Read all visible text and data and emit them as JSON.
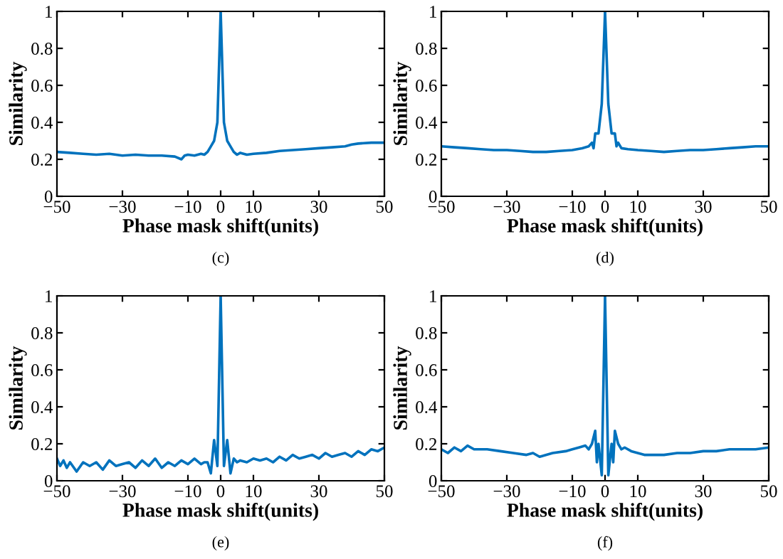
{
  "chart_data": [
    {
      "type": "line",
      "xlabel": "Phase mask shift(units)",
      "ylabel": "Similarity",
      "annotations": [
        "(c)"
      ],
      "xlim": [
        -50,
        50
      ],
      "ylim": [
        0,
        1
      ],
      "xticks": [
        {
          "value": -50,
          "label": "−50"
        },
        {
          "value": -30,
          "label": "−30"
        },
        {
          "value": -10,
          "label": "−10"
        },
        0,
        10,
        30,
        50
      ],
      "yticks": [
        0,
        0.2,
        0.4,
        0.6,
        0.8,
        1
      ],
      "series": [
        {
          "color": "#0072bd",
          "x": [
            -50,
            -46,
            -42,
            -38,
            -34,
            -30,
            -26,
            -22,
            -18,
            -14,
            -12,
            -11,
            -10,
            -8,
            -6,
            -5,
            -4,
            -3,
            -2,
            -1,
            0,
            1,
            2,
            3,
            4,
            5,
            6,
            8,
            10,
            14,
            18,
            22,
            26,
            30,
            34,
            38,
            40,
            42,
            46,
            50
          ],
          "values": [
            0.24,
            0.235,
            0.23,
            0.225,
            0.23,
            0.22,
            0.225,
            0.22,
            0.22,
            0.215,
            0.2,
            0.22,
            0.225,
            0.22,
            0.23,
            0.225,
            0.24,
            0.27,
            0.3,
            0.4,
            1,
            0.4,
            0.3,
            0.27,
            0.24,
            0.225,
            0.235,
            0.225,
            0.23,
            0.235,
            0.245,
            0.25,
            0.255,
            0.26,
            0.265,
            0.27,
            0.28,
            0.285,
            0.29,
            0.29
          ]
        }
      ]
    },
    {
      "type": "line",
      "xlabel": "Phase mask shift(units)",
      "ylabel": "Similarity",
      "annotations": [
        "(d)"
      ],
      "xlim": [
        -50,
        50
      ],
      "ylim": [
        0,
        1
      ],
      "xticks": [
        {
          "value": -50,
          "label": "−50"
        },
        {
          "value": -30,
          "label": "−30"
        },
        {
          "value": -10,
          "label": "−10"
        },
        0,
        10,
        30,
        50
      ],
      "yticks": [
        0,
        0.2,
        0.4,
        0.6,
        0.8,
        1
      ],
      "series": [
        {
          "color": "#0072bd",
          "x": [
            -50,
            -46,
            -42,
            -38,
            -34,
            -30,
            -26,
            -22,
            -18,
            -14,
            -10,
            -7,
            -5,
            -4,
            -3.5,
            -3,
            -2,
            -1,
            0,
            1,
            2,
            3,
            3.5,
            4,
            5,
            7,
            10,
            14,
            18,
            22,
            26,
            30,
            34,
            38,
            42,
            46,
            50
          ],
          "values": [
            0.27,
            0.265,
            0.26,
            0.255,
            0.25,
            0.25,
            0.245,
            0.24,
            0.24,
            0.245,
            0.25,
            0.26,
            0.27,
            0.29,
            0.26,
            0.34,
            0.34,
            0.5,
            1,
            0.5,
            0.34,
            0.34,
            0.27,
            0.29,
            0.26,
            0.255,
            0.25,
            0.245,
            0.24,
            0.245,
            0.25,
            0.25,
            0.255,
            0.26,
            0.265,
            0.27,
            0.27
          ]
        }
      ]
    },
    {
      "type": "line",
      "xlabel": "Phase mask shift(units)",
      "ylabel": "Similarity",
      "annotations": [
        "(e)"
      ],
      "xlim": [
        -50,
        50
      ],
      "ylim": [
        0,
        1
      ],
      "xticks": [
        {
          "value": -50,
          "label": "−50"
        },
        {
          "value": -30,
          "label": "−30"
        },
        {
          "value": -10,
          "label": "−10"
        },
        0,
        10,
        30,
        50
      ],
      "yticks": [
        0,
        0.2,
        0.4,
        0.6,
        0.8,
        1
      ],
      "series": [
        {
          "color": "#0072bd",
          "x": [
            -50,
            -49,
            -48,
            -47,
            -46,
            -44,
            -42,
            -40,
            -38,
            -36,
            -34,
            -32,
            -30,
            -28,
            -26,
            -24,
            -22,
            -20,
            -18,
            -16,
            -14,
            -12,
            -10,
            -8,
            -6,
            -5,
            -4,
            -3,
            -2,
            -1,
            0,
            1,
            2,
            3,
            4,
            5,
            6,
            8,
            10,
            12,
            14,
            16,
            18,
            20,
            22,
            24,
            26,
            28,
            30,
            32,
            34,
            36,
            38,
            40,
            42,
            44,
            46,
            48,
            50
          ],
          "values": [
            0.12,
            0.08,
            0.11,
            0.07,
            0.1,
            0.05,
            0.1,
            0.08,
            0.1,
            0.06,
            0.11,
            0.08,
            0.09,
            0.1,
            0.07,
            0.11,
            0.08,
            0.12,
            0.07,
            0.1,
            0.08,
            0.11,
            0.09,
            0.12,
            0.09,
            0.1,
            0.1,
            0.04,
            0.22,
            0.08,
            1,
            0.08,
            0.22,
            0.04,
            0.12,
            0.1,
            0.11,
            0.1,
            0.12,
            0.11,
            0.12,
            0.1,
            0.13,
            0.11,
            0.14,
            0.12,
            0.13,
            0.14,
            0.12,
            0.15,
            0.13,
            0.14,
            0.15,
            0.13,
            0.16,
            0.14,
            0.17,
            0.16,
            0.18
          ]
        }
      ]
    },
    {
      "type": "line",
      "xlabel": "Phase mask shift(units)",
      "ylabel": "Similarity",
      "annotations": [
        "(f)"
      ],
      "xlim": [
        -50,
        50
      ],
      "ylim": [
        0,
        1
      ],
      "xticks": [
        {
          "value": -50,
          "label": "−50"
        },
        {
          "value": -30,
          "label": "−30"
        },
        {
          "value": -10,
          "label": "−10"
        },
        0,
        10,
        30,
        50
      ],
      "yticks": [
        0,
        0.2,
        0.4,
        0.6,
        0.8,
        1
      ],
      "series": [
        {
          "color": "#0072bd",
          "x": [
            -50,
            -48,
            -46,
            -44,
            -42,
            -40,
            -36,
            -32,
            -28,
            -24,
            -22,
            -20,
            -16,
            -12,
            -10,
            -8,
            -6,
            -5,
            -4,
            -3,
            -2.5,
            -2,
            -1,
            0,
            1,
            2,
            2.5,
            3,
            4,
            5,
            6,
            8,
            10,
            12,
            14,
            18,
            22,
            26,
            30,
            34,
            38,
            42,
            46,
            50
          ],
          "values": [
            0.17,
            0.15,
            0.18,
            0.16,
            0.19,
            0.17,
            0.17,
            0.16,
            0.15,
            0.14,
            0.15,
            0.13,
            0.15,
            0.16,
            0.17,
            0.18,
            0.19,
            0.17,
            0.2,
            0.27,
            0.1,
            0.2,
            0.03,
            1,
            0.03,
            0.2,
            0.1,
            0.27,
            0.2,
            0.17,
            0.18,
            0.16,
            0.15,
            0.14,
            0.14,
            0.14,
            0.15,
            0.15,
            0.16,
            0.16,
            0.17,
            0.17,
            0.17,
            0.18
          ]
        }
      ]
    }
  ]
}
